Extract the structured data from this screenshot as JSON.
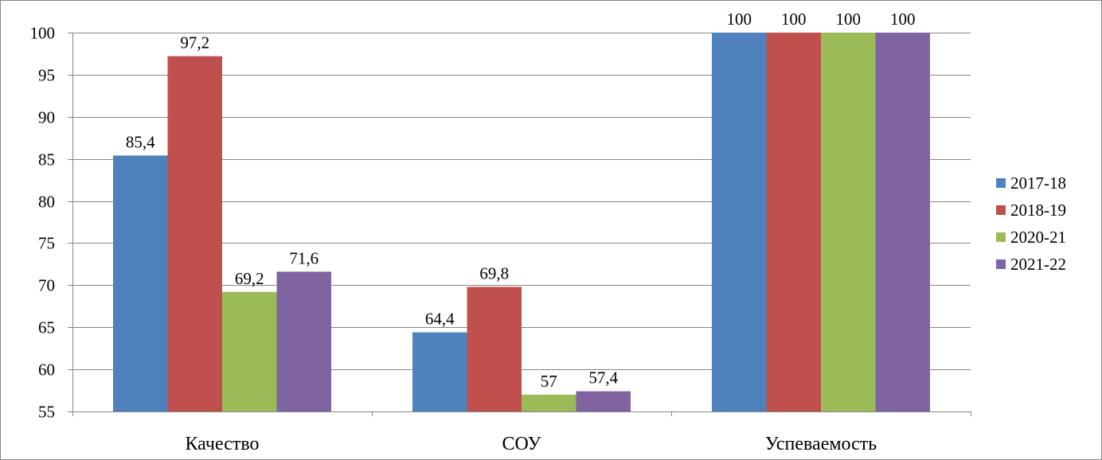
{
  "chart_data": {
    "type": "bar",
    "categories": [
      "Качество",
      "СОУ",
      "Успеваемость"
    ],
    "series": [
      {
        "name": "2017-18",
        "values": [
          85.4,
          64.4,
          100
        ],
        "labels": [
          "85,4",
          "64,4",
          "100"
        ],
        "color": "#4F81BD"
      },
      {
        "name": "2018-19",
        "values": [
          97.2,
          69.8,
          100
        ],
        "labels": [
          "97,2",
          "69,8",
          "100"
        ],
        "color": "#C0504D"
      },
      {
        "name": "2020-21",
        "values": [
          69.2,
          57,
          100
        ],
        "labels": [
          "69,2",
          "57",
          "100"
        ],
        "color": "#9BBB59"
      },
      {
        "name": "2021-22",
        "values": [
          71.6,
          57.4,
          100
        ],
        "labels": [
          "71,6",
          "57,4",
          "100"
        ],
        "color": "#8064A2"
      }
    ],
    "ylim": [
      55,
      100
    ],
    "yticks": [
      55,
      60,
      65,
      70,
      75,
      80,
      85,
      90,
      95,
      100
    ],
    "grid": true,
    "legend_position": "right",
    "title": "",
    "xlabel": "",
    "ylabel": ""
  }
}
